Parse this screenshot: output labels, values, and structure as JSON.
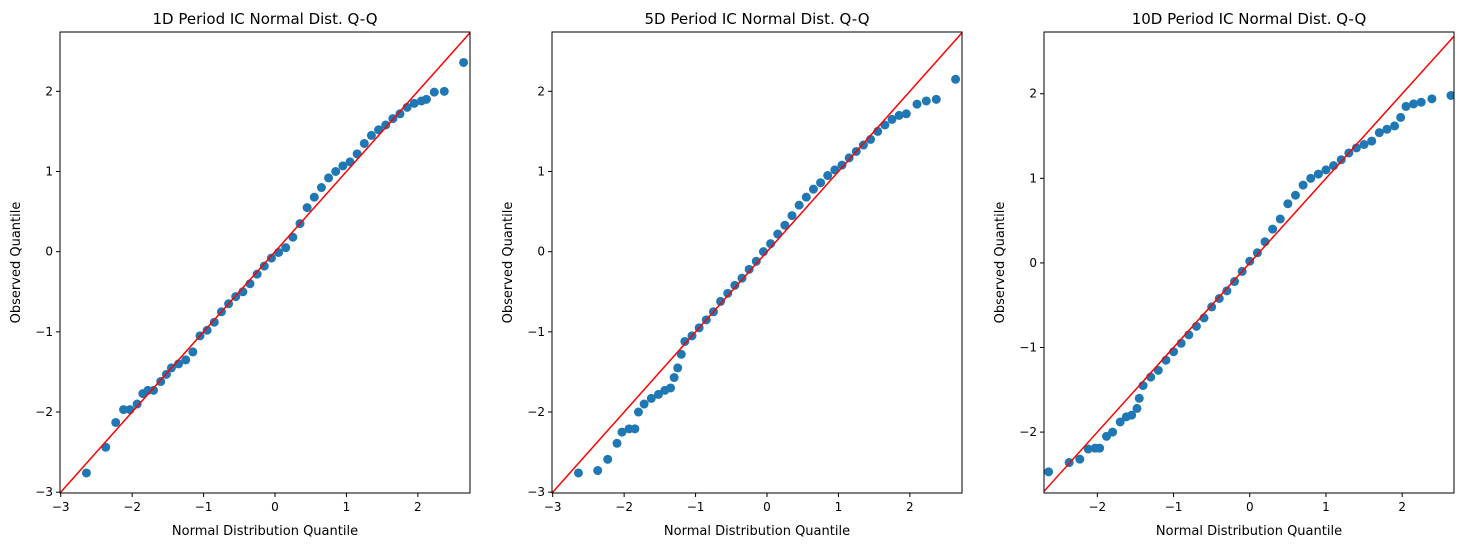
{
  "chart_data": [
    {
      "type": "scatter",
      "title": "1D Period IC Normal Dist. Q-Q",
      "xlabel": "Normal Distribution Quantile",
      "ylabel": "Observed Quantile",
      "xlim": [
        -3.01,
        2.73
      ],
      "ylim": [
        -3.01,
        2.74
      ],
      "xticks": [
        -3,
        -2,
        -1,
        0,
        1,
        2
      ],
      "yticks": [
        -3,
        -2,
        -1,
        0,
        1,
        2
      ],
      "grid": false,
      "point_color": "#1f77b4",
      "line_color": "#ff0000",
      "reference_line": "y = x",
      "x": [
        -2.64,
        -2.37,
        -2.23,
        -2.12,
        -2.03,
        -1.93,
        -1.85,
        -1.78,
        -1.7,
        -1.6,
        -1.52,
        -1.45,
        -1.35,
        -1.25,
        -1.15,
        -1.05,
        -0.95,
        -0.85,
        -0.75,
        -0.65,
        -0.55,
        -0.45,
        -0.35,
        -0.25,
        -0.15,
        -0.05,
        0.05,
        0.15,
        0.25,
        0.35,
        0.45,
        0.55,
        0.65,
        0.75,
        0.85,
        0.95,
        1.05,
        1.15,
        1.25,
        1.35,
        1.45,
        1.55,
        1.65,
        1.75,
        1.85,
        1.95,
        2.05,
        2.12,
        2.23,
        2.37,
        2.64
      ],
      "y": [
        -2.76,
        -2.44,
        -2.13,
        -1.97,
        -1.97,
        -1.9,
        -1.77,
        -1.73,
        -1.73,
        -1.62,
        -1.53,
        -1.45,
        -1.4,
        -1.35,
        -1.25,
        -1.05,
        -0.98,
        -0.88,
        -0.75,
        -0.65,
        -0.56,
        -0.5,
        -0.4,
        -0.28,
        -0.18,
        -0.08,
        -0.01,
        0.05,
        0.18,
        0.35,
        0.55,
        0.68,
        0.8,
        0.92,
        1.0,
        1.07,
        1.12,
        1.22,
        1.35,
        1.45,
        1.52,
        1.58,
        1.66,
        1.72,
        1.8,
        1.85,
        1.88,
        1.9,
        1.99,
        2.0,
        2.36
      ]
    },
    {
      "type": "scatter",
      "title": "5D Period IC Normal Dist. Q-Q",
      "xlabel": "Normal Distribution Quantile",
      "ylabel": "Observed Quantile",
      "xlim": [
        -3.01,
        2.73
      ],
      "ylim": [
        -3.01,
        2.74
      ],
      "xticks": [
        -3,
        -2,
        -1,
        0,
        1,
        2
      ],
      "yticks": [
        -3,
        -2,
        -1,
        0,
        1,
        2
      ],
      "grid": false,
      "point_color": "#1f77b4",
      "line_color": "#ff0000",
      "reference_line": "y = x",
      "x": [
        -2.64,
        -2.37,
        -2.23,
        -2.1,
        -2.03,
        -1.93,
        -1.85,
        -1.8,
        -1.72,
        -1.62,
        -1.52,
        -1.43,
        -1.35,
        -1.3,
        -1.25,
        -1.2,
        -1.15,
        -1.05,
        -0.95,
        -0.85,
        -0.75,
        -0.65,
        -0.55,
        -0.45,
        -0.35,
        -0.25,
        -0.15,
        -0.05,
        0.05,
        0.15,
        0.25,
        0.35,
        0.45,
        0.55,
        0.65,
        0.75,
        0.85,
        0.95,
        1.05,
        1.15,
        1.25,
        1.35,
        1.45,
        1.55,
        1.65,
        1.75,
        1.85,
        1.95,
        2.1,
        2.23,
        2.37,
        2.64
      ],
      "y": [
        -2.76,
        -2.73,
        -2.59,
        -2.39,
        -2.25,
        -2.21,
        -2.21,
        -2.0,
        -1.9,
        -1.83,
        -1.78,
        -1.73,
        -1.7,
        -1.57,
        -1.45,
        -1.28,
        -1.12,
        -1.05,
        -0.95,
        -0.85,
        -0.75,
        -0.62,
        -0.52,
        -0.42,
        -0.33,
        -0.22,
        -0.12,
        0.0,
        0.1,
        0.22,
        0.33,
        0.45,
        0.58,
        0.68,
        0.78,
        0.86,
        0.95,
        1.02,
        1.08,
        1.17,
        1.25,
        1.33,
        1.4,
        1.5,
        1.58,
        1.65,
        1.7,
        1.72,
        1.84,
        1.88,
        1.9,
        2.15
      ]
    },
    {
      "type": "scatter",
      "title": "10D Period IC Normal Dist. Q-Q",
      "xlabel": "Normal Distribution Quantile",
      "ylabel": "Observed Quantile",
      "xlim": [
        -2.7,
        2.68
      ],
      "ylim": [
        -2.72,
        2.73
      ],
      "xticks": [
        -2,
        -1,
        0,
        1,
        2
      ],
      "yticks": [
        -2,
        -1,
        0,
        1,
        2
      ],
      "grid": false,
      "point_color": "#1f77b4",
      "line_color": "#ff0000",
      "reference_line": "y = x",
      "x": [
        -2.64,
        -2.37,
        -2.23,
        -2.12,
        -2.03,
        -1.97,
        -1.88,
        -1.8,
        -1.7,
        -1.62,
        -1.55,
        -1.48,
        -1.45,
        -1.4,
        -1.3,
        -1.2,
        -1.1,
        -1.0,
        -0.9,
        -0.8,
        -0.7,
        -0.6,
        -0.5,
        -0.4,
        -0.3,
        -0.2,
        -0.1,
        0.0,
        0.1,
        0.2,
        0.3,
        0.4,
        0.5,
        0.6,
        0.7,
        0.8,
        0.9,
        1.0,
        1.1,
        1.2,
        1.3,
        1.4,
        1.5,
        1.6,
        1.7,
        1.8,
        1.9,
        1.98,
        2.05,
        2.15,
        2.25,
        2.39,
        2.64
      ],
      "y": [
        -2.47,
        -2.36,
        -2.32,
        -2.2,
        -2.19,
        -2.19,
        -2.05,
        -2.0,
        -1.88,
        -1.82,
        -1.8,
        -1.72,
        -1.6,
        -1.45,
        -1.35,
        -1.27,
        -1.15,
        -1.05,
        -0.95,
        -0.85,
        -0.75,
        -0.65,
        -0.52,
        -0.42,
        -0.33,
        -0.22,
        -0.1,
        0.02,
        0.12,
        0.25,
        0.4,
        0.52,
        0.7,
        0.8,
        0.92,
        1.0,
        1.05,
        1.1,
        1.15,
        1.22,
        1.3,
        1.36,
        1.4,
        1.44,
        1.54,
        1.58,
        1.62,
        1.72,
        1.85,
        1.88,
        1.9,
        1.94,
        1.98
      ]
    }
  ]
}
